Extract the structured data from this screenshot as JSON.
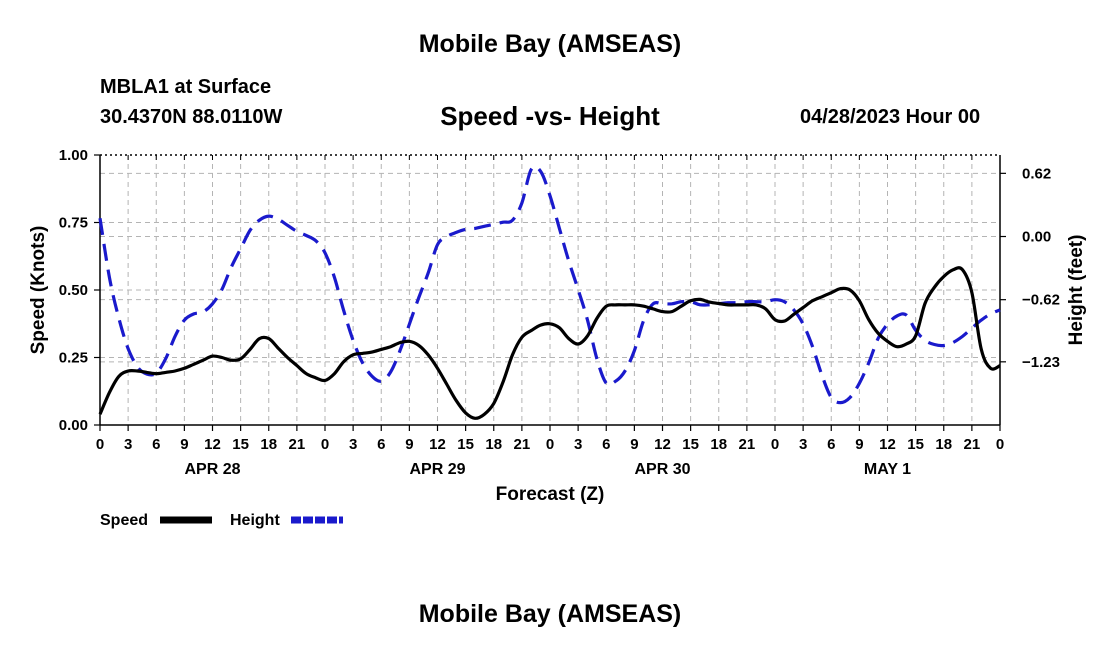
{
  "header": {
    "title": "Mobile Bay (AMSEAS)",
    "station": "MBLA1 at Surface",
    "coords": "30.4370N  88.0110W",
    "subtitle": "Speed -vs- Height",
    "datetime": "04/28/2023 Hour 00",
    "footer_title": "Mobile Bay (AMSEAS)"
  },
  "chart_data": {
    "type": "line",
    "xlabel": "Forecast (Z)",
    "ylabel": "Speed (Knots)",
    "ylabel_right": "Height (feet)",
    "xlim": [
      0,
      96
    ],
    "ylim": [
      0,
      1.0
    ],
    "ylim_right": [
      -1.85,
      0.8
    ],
    "x_ticks": [
      0,
      3,
      6,
      9,
      12,
      15,
      18,
      21,
      24,
      27,
      30,
      33,
      36,
      39,
      42,
      45,
      48,
      51,
      54,
      57,
      60,
      63,
      66,
      69,
      72,
      75,
      78,
      81,
      84,
      87,
      90,
      93,
      96
    ],
    "x_tick_labels": [
      "0",
      "3",
      "6",
      "9",
      "12",
      "15",
      "18",
      "21",
      "0",
      "3",
      "6",
      "9",
      "12",
      "15",
      "18",
      "21",
      "0",
      "3",
      "6",
      "9",
      "12",
      "15",
      "18",
      "21",
      "0",
      "3",
      "6",
      "9",
      "12",
      "15",
      "18",
      "21",
      "0"
    ],
    "date_labels": [
      {
        "label": "APR 28",
        "x": 12
      },
      {
        "label": "APR 29",
        "x": 36
      },
      {
        "label": "APR 30",
        "x": 60
      },
      {
        "label": "MAY 1",
        "x": 84
      }
    ],
    "y_ticks": [
      0,
      0.25,
      0.5,
      0.75,
      1.0
    ],
    "y_tick_labels": [
      "0.00",
      "0.25",
      "0.50",
      "0.75",
      "1.00"
    ],
    "y_ticks_right": [
      0.62,
      0.0,
      -0.62,
      -1.23
    ],
    "y_tick_labels_right": [
      "0.62",
      "0.00",
      "−0.62",
      "−1.23"
    ],
    "series": [
      {
        "name": "Speed",
        "axis": "left",
        "color": "#000000",
        "style": "solid",
        "x": [
          0,
          1,
          2,
          3,
          4,
          5,
          6,
          7,
          8,
          9,
          10,
          11,
          12,
          13,
          14,
          15,
          16,
          17,
          18,
          19,
          20,
          21,
          22,
          23,
          24,
          25,
          26,
          27,
          28,
          29,
          30,
          31,
          32,
          33,
          34,
          35,
          36,
          37,
          38,
          39,
          40,
          41,
          42,
          43,
          44,
          45,
          46,
          47,
          48,
          49,
          50,
          51,
          52,
          53,
          54,
          55,
          56,
          57,
          58,
          59,
          60,
          61,
          62,
          63,
          64,
          65,
          66,
          67,
          68,
          69,
          70,
          71,
          72,
          73,
          74,
          75,
          76,
          77,
          78,
          79,
          80,
          81,
          82,
          83,
          84,
          85,
          86,
          87,
          88,
          89,
          90,
          91,
          92,
          93,
          94,
          95,
          96
        ],
        "values": [
          0.04,
          0.12,
          0.18,
          0.2,
          0.2,
          0.195,
          0.19,
          0.195,
          0.2,
          0.21,
          0.225,
          0.24,
          0.255,
          0.25,
          0.24,
          0.245,
          0.28,
          0.32,
          0.32,
          0.285,
          0.25,
          0.22,
          0.19,
          0.175,
          0.165,
          0.19,
          0.235,
          0.26,
          0.265,
          0.27,
          0.28,
          0.29,
          0.305,
          0.31,
          0.295,
          0.26,
          0.21,
          0.15,
          0.09,
          0.045,
          0.025,
          0.04,
          0.08,
          0.16,
          0.26,
          0.325,
          0.35,
          0.37,
          0.375,
          0.36,
          0.32,
          0.3,
          0.33,
          0.395,
          0.44,
          0.445,
          0.445,
          0.445,
          0.44,
          0.43,
          0.42,
          0.42,
          0.44,
          0.46,
          0.465,
          0.455,
          0.45,
          0.445,
          0.445,
          0.445,
          0.445,
          0.43,
          0.39,
          0.385,
          0.41,
          0.435,
          0.46,
          0.475,
          0.49,
          0.505,
          0.5,
          0.46,
          0.39,
          0.34,
          0.31,
          0.29,
          0.3,
          0.33,
          0.45,
          0.51,
          0.55,
          0.575,
          0.575,
          0.49,
          0.28,
          0.21,
          0.22
        ]
      },
      {
        "name": "Height",
        "axis": "right",
        "color": "#1a1acc",
        "style": "dashed",
        "x": [
          0,
          1,
          2,
          3,
          4,
          5,
          6,
          7,
          8,
          9,
          10,
          11,
          12,
          13,
          14,
          15,
          16,
          17,
          18,
          19,
          20,
          21,
          22,
          23,
          24,
          25,
          26,
          27,
          28,
          29,
          30,
          31,
          32,
          33,
          34,
          35,
          36,
          37,
          38,
          39,
          40,
          41,
          42,
          43,
          44,
          45,
          46,
          47,
          48,
          49,
          50,
          51,
          52,
          53,
          54,
          55,
          56,
          57,
          58,
          59,
          60,
          61,
          62,
          63,
          64,
          65,
          66,
          67,
          68,
          69,
          70,
          71,
          72,
          73,
          74,
          75,
          76,
          77,
          78,
          79,
          80,
          81,
          82,
          83,
          84,
          85,
          86,
          87,
          88,
          89,
          90,
          91,
          92,
          93,
          94,
          95,
          96
        ],
        "values": [
          0.18,
          -0.4,
          -0.8,
          -1.1,
          -1.28,
          -1.35,
          -1.34,
          -1.2,
          -0.98,
          -0.82,
          -0.76,
          -0.74,
          -0.66,
          -0.52,
          -0.3,
          -0.12,
          0.06,
          0.16,
          0.2,
          0.17,
          0.11,
          0.05,
          0.01,
          -0.04,
          -0.16,
          -0.4,
          -0.73,
          -1.02,
          -1.24,
          -1.37,
          -1.42,
          -1.33,
          -1.12,
          -0.86,
          -0.6,
          -0.36,
          -0.08,
          0.0,
          0.04,
          0.07,
          0.08,
          0.1,
          0.12,
          0.14,
          0.16,
          0.33,
          0.66,
          0.64,
          0.4,
          0.08,
          -0.24,
          -0.52,
          -0.82,
          -1.2,
          -1.44,
          -1.42,
          -1.32,
          -1.12,
          -0.82,
          -0.66,
          -0.66,
          -0.66,
          -0.64,
          -0.64,
          -0.67,
          -0.67,
          -0.66,
          -0.65,
          -0.65,
          -0.64,
          -0.64,
          -0.64,
          -0.62,
          -0.64,
          -0.72,
          -0.86,
          -1.08,
          -1.36,
          -1.58,
          -1.63,
          -1.58,
          -1.44,
          -1.24,
          -1.0,
          -0.86,
          -0.78,
          -0.77,
          -0.92,
          -1.02,
          -1.06,
          -1.07,
          -1.04,
          -0.98,
          -0.9,
          -0.82,
          -0.76,
          -0.72
        ]
      }
    ],
    "legend": [
      {
        "label": "Speed",
        "color": "#000000",
        "style": "solid"
      },
      {
        "label": "Height",
        "color": "#1a1acc",
        "style": "dashed"
      }
    ],
    "legend_position": "bottom-left",
    "grid": true
  }
}
